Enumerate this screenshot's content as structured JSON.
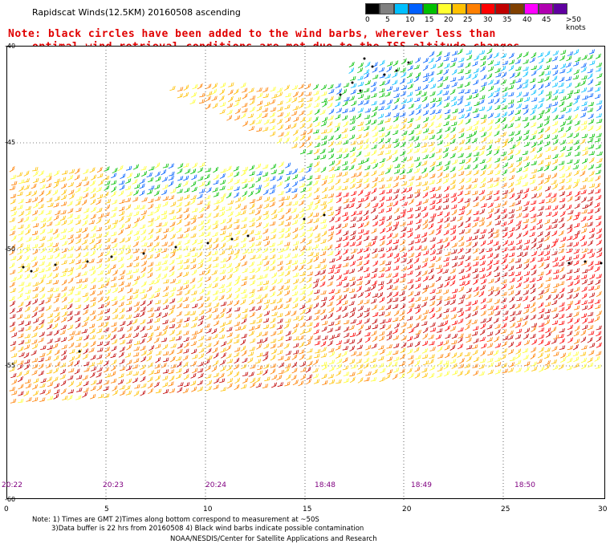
{
  "header": {
    "title": "Rapidscat Winds(12.5KM) 20160508 ascending",
    "note_line1": "Note: black circles have been added to the wind barbs, wherever less than",
    "note_line2": "optimal wind retrieval conditions are met due to the ISS altitude changes."
  },
  "legend": {
    "labels": [
      "0",
      "5",
      "10",
      "15",
      "20",
      "25",
      "30",
      "35",
      "40",
      "45",
      ">50 knots"
    ],
    "colors": [
      "#000000",
      "#808080",
      "#00bfff",
      "#0060ff",
      "#00c000",
      "#ffff30",
      "#ffc000",
      "#ff7f00",
      "#ff0000",
      "#c00000",
      "#804000",
      "#ff00ff",
      "#b000b0",
      "#6000a0"
    ]
  },
  "map": {
    "lat_labels": [
      "-40",
      "-45",
      "-50",
      "-55",
      "-60"
    ],
    "lon_labels": [
      "0",
      "5",
      "10",
      "15",
      "20",
      "25",
      "30"
    ],
    "time_labels": [
      "20:22",
      "20:23",
      "20:24",
      "18:48",
      "18:49",
      "18:50"
    ]
  },
  "footer": {
    "line1": "Note: 1) Times are GMT 2)Times along bottom correspond to measurement at ~50S",
    "line2": "3)Data buffer is 22 hrs from 20160508 4) Black wind barbs indicate possible contamination",
    "line3": "NOAA/NESDIS/Center for Satellite Applications and Research"
  }
}
